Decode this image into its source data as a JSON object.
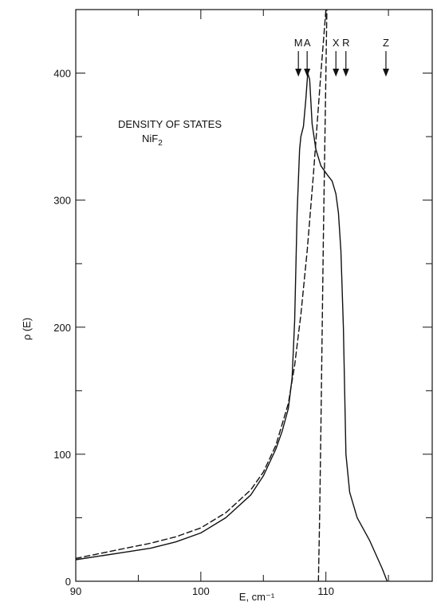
{
  "chart_data": {
    "type": "line",
    "title": "",
    "annotation_line1": "DENSITY OF STATES",
    "annotation_line2": "NiF",
    "annotation_subscript": "2",
    "xlabel": "E, cm⁻¹",
    "ylabel": "ρ (E)",
    "xlim": [
      90,
      118.5
    ],
    "ylim": [
      0,
      450
    ],
    "x_tick_labels": [
      {
        "value": 90,
        "label": "90"
      },
      {
        "value": 100,
        "label": "100"
      },
      {
        "value": 110,
        "label": "110"
      }
    ],
    "x_minor_ticks": [
      95,
      105,
      115
    ],
    "y_tick_labels": [
      {
        "value": 0,
        "label": "0"
      },
      {
        "value": 100,
        "label": "100"
      },
      {
        "value": 200,
        "label": "200"
      },
      {
        "value": 300,
        "label": "300"
      },
      {
        "value": 400,
        "label": "400"
      }
    ],
    "y_minor_ticks": [
      50,
      150,
      250,
      350
    ],
    "grid": false,
    "symmetry_points": [
      {
        "label": "M",
        "x": 107.8
      },
      {
        "label": "A",
        "x": 108.5
      },
      {
        "label": "X",
        "x": 110.8
      },
      {
        "label": "R",
        "x": 111.6
      },
      {
        "label": "Z",
        "x": 114.8
      }
    ],
    "series": [
      {
        "style": "solid",
        "x": [
          90,
          92,
          94,
          96,
          98,
          100,
          102,
          104,
          105,
          106,
          106.5,
          107,
          107.3,
          107.5,
          107.7,
          107.9,
          108.0,
          108.2,
          108.4,
          108.55,
          108.7,
          108.9,
          109.2,
          109.6,
          110.1,
          110.5,
          110.8,
          111.0,
          111.2,
          111.4,
          111.6,
          111.9,
          112.5,
          113.5,
          114.5,
          114.9
        ],
        "y": [
          17,
          20,
          23,
          26,
          31,
          38,
          50,
          68,
          83,
          104,
          118,
          136,
          160,
          205,
          290,
          340,
          350,
          358,
          380,
          400,
          395,
          360,
          340,
          327,
          320,
          315,
          305,
          290,
          260,
          200,
          100,
          70,
          50,
          32,
          10,
          0
        ]
      },
      {
        "style": "dashed",
        "x": [
          90,
          92,
          94,
          96,
          98,
          100,
          102,
          104,
          105,
          106,
          107,
          107.5,
          108,
          108.5,
          109,
          109.3,
          109.6,
          110.0,
          110.3
        ],
        "y": [
          18,
          22,
          26,
          30,
          35,
          42,
          54,
          72,
          86,
          107,
          140,
          170,
          210,
          260,
          320,
          360,
          400,
          450,
          530
        ]
      },
      {
        "style": "dashed",
        "x": [
          109.4,
          109.5,
          109.6,
          109.8,
          110.0,
          110.2
        ],
        "y": [
          0,
          50,
          120,
          270,
          400,
          530
        ]
      }
    ]
  }
}
